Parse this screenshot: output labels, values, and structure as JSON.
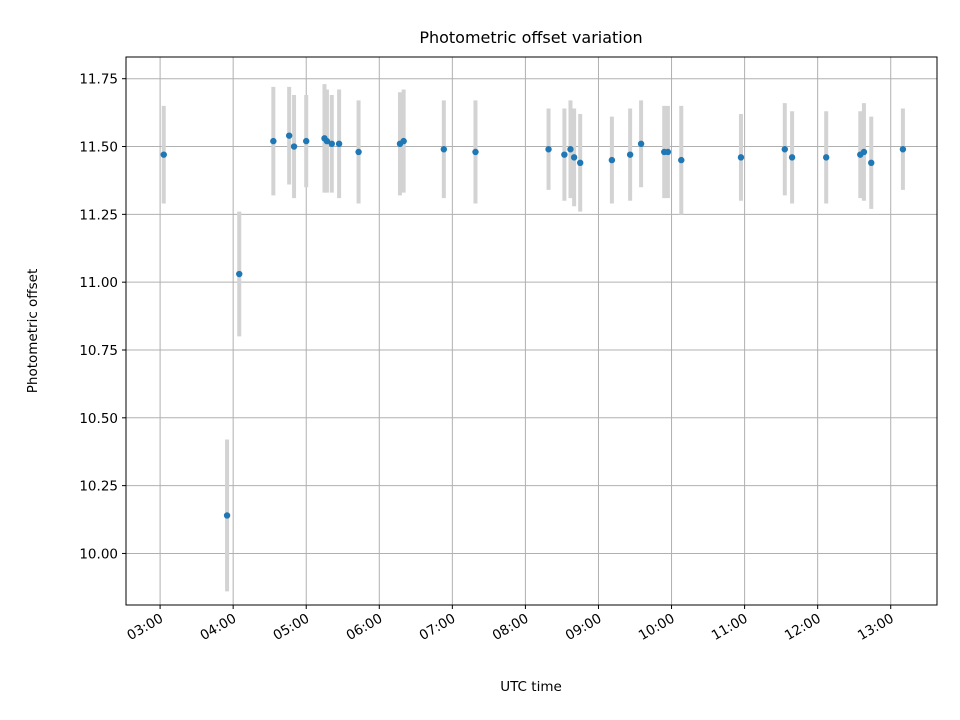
{
  "chart_data": {
    "type": "scatter",
    "title": "Photometric offset variation",
    "xlabel": "UTC time",
    "ylabel": "Photometric offset",
    "grid": true,
    "legend": "none",
    "xlim": [
      "02:32",
      "13:38"
    ],
    "ylim": [
      9.81,
      11.83
    ],
    "x_ticks": [
      "03:00",
      "04:00",
      "05:00",
      "06:00",
      "07:00",
      "08:00",
      "09:00",
      "10:00",
      "11:00",
      "12:00",
      "13:00"
    ],
    "y_ticks": [
      10.0,
      10.25,
      10.5,
      10.75,
      11.0,
      11.25,
      11.5,
      11.75
    ],
    "colors": {
      "points": "#1f77b4",
      "error_bars": "#d3d3d3",
      "grid": "#b0b0b0"
    },
    "points": [
      {
        "x": "03:03",
        "y": 11.47,
        "err": 0.18
      },
      {
        "x": "03:55",
        "y": 10.14,
        "err": 0.28
      },
      {
        "x": "04:05",
        "y": 11.03,
        "err": 0.23
      },
      {
        "x": "04:33",
        "y": 11.52,
        "err": 0.2
      },
      {
        "x": "04:46",
        "y": 11.54,
        "err": 0.18
      },
      {
        "x": "04:50",
        "y": 11.5,
        "err": 0.19
      },
      {
        "x": "05:00",
        "y": 11.52,
        "err": 0.17
      },
      {
        "x": "05:15",
        "y": 11.53,
        "err": 0.2
      },
      {
        "x": "05:17",
        "y": 11.52,
        "err": 0.19
      },
      {
        "x": "05:21",
        "y": 11.51,
        "err": 0.18
      },
      {
        "x": "05:27",
        "y": 11.51,
        "err": 0.2
      },
      {
        "x": "05:43",
        "y": 11.48,
        "err": 0.19
      },
      {
        "x": "06:17",
        "y": 11.51,
        "err": 0.19
      },
      {
        "x": "06:20",
        "y": 11.52,
        "err": 0.19
      },
      {
        "x": "06:53",
        "y": 11.49,
        "err": 0.18
      },
      {
        "x": "07:19",
        "y": 11.48,
        "err": 0.19
      },
      {
        "x": "08:19",
        "y": 11.49,
        "err": 0.15
      },
      {
        "x": "08:32",
        "y": 11.47,
        "err": 0.17
      },
      {
        "x": "08:37",
        "y": 11.49,
        "err": 0.18
      },
      {
        "x": "08:40",
        "y": 11.46,
        "err": 0.18
      },
      {
        "x": "08:45",
        "y": 11.44,
        "err": 0.18
      },
      {
        "x": "09:11",
        "y": 11.45,
        "err": 0.16
      },
      {
        "x": "09:26",
        "y": 11.47,
        "err": 0.17
      },
      {
        "x": "09:35",
        "y": 11.51,
        "err": 0.16
      },
      {
        "x": "09:54",
        "y": 11.48,
        "err": 0.17
      },
      {
        "x": "09:57",
        "y": 11.48,
        "err": 0.17
      },
      {
        "x": "10:08",
        "y": 11.45,
        "err": 0.2
      },
      {
        "x": "10:57",
        "y": 11.46,
        "err": 0.16
      },
      {
        "x": "11:33",
        "y": 11.49,
        "err": 0.17
      },
      {
        "x": "11:39",
        "y": 11.46,
        "err": 0.17
      },
      {
        "x": "12:07",
        "y": 11.46,
        "err": 0.17
      },
      {
        "x": "12:35",
        "y": 11.47,
        "err": 0.16
      },
      {
        "x": "12:38",
        "y": 11.48,
        "err": 0.18
      },
      {
        "x": "12:44",
        "y": 11.44,
        "err": 0.17
      },
      {
        "x": "13:10",
        "y": 11.49,
        "err": 0.15
      }
    ]
  }
}
